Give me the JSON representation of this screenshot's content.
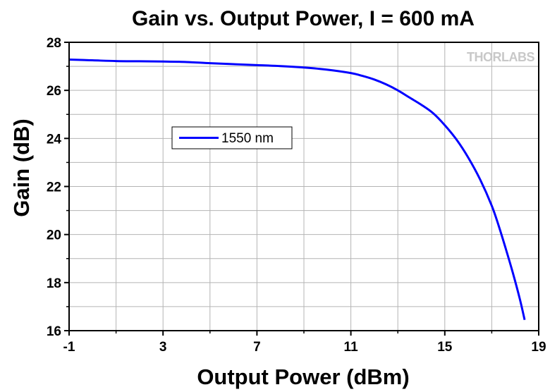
{
  "chart_data": {
    "type": "line",
    "title": "Gain vs. Output Power, I = 600 mA",
    "xlabel": "Output Power (dBm)",
    "ylabel": "Gain (dB)",
    "xlim": [
      -1,
      19
    ],
    "ylim": [
      16,
      28
    ],
    "xticks": [
      -1,
      3,
      7,
      11,
      15,
      19
    ],
    "yticks": [
      16,
      18,
      20,
      22,
      24,
      26,
      28
    ],
    "grid": true,
    "legend_position": "left-middle",
    "series": [
      {
        "name": "1550 nm",
        "color": "#0000ff",
        "x": [
          -1,
          0,
          1,
          2,
          3,
          4,
          5,
          6,
          7,
          8,
          9,
          10,
          11,
          11.5,
          12,
          12.5,
          13,
          13.5,
          14,
          14.5,
          15,
          15.5,
          16,
          16.5,
          17,
          17.3,
          17.6,
          17.9,
          18.2,
          18.4
        ],
        "y": [
          27.28,
          27.25,
          27.22,
          27.21,
          27.2,
          27.18,
          27.13,
          27.09,
          27.05,
          27.01,
          26.95,
          26.86,
          26.72,
          26.6,
          26.45,
          26.25,
          26.0,
          25.7,
          25.4,
          25.05,
          24.55,
          23.95,
          23.2,
          22.3,
          21.2,
          20.35,
          19.4,
          18.4,
          17.3,
          16.45
        ]
      }
    ]
  },
  "logo": {
    "text": "THORLABS"
  }
}
